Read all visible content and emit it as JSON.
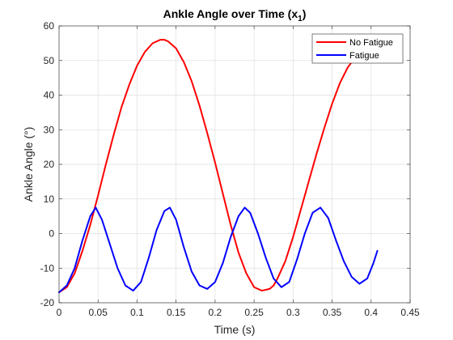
{
  "chart_data": {
    "type": "line",
    "title": "Ankle Angle over Time (x",
    "title_subscript": "1",
    "title_close": ")",
    "xlabel": "Time (s)",
    "ylabel": "Ankle Angle (°)",
    "xlim": [
      0,
      0.45
    ],
    "ylim": [
      -20,
      60
    ],
    "xticks": [
      0,
      0.05,
      0.1,
      0.15,
      0.2,
      0.25,
      0.3,
      0.35,
      0.4,
      0.45
    ],
    "xtick_labels": [
      "0",
      "0.05",
      "0.1",
      "0.15",
      "0.2",
      "0.25",
      "0.3",
      "0.35",
      "0.4",
      "0.45"
    ],
    "yticks": [
      -20,
      -10,
      0,
      10,
      20,
      30,
      40,
      50,
      60
    ],
    "ytick_labels": [
      "-20",
      "-10",
      "0",
      "10",
      "20",
      "30",
      "40",
      "50",
      "60"
    ],
    "grid": true,
    "legend_position": "top-right",
    "series": [
      {
        "name": "No Fatigue",
        "color": "#ff0000",
        "x": [
          0,
          0.01,
          0.02,
          0.03,
          0.04,
          0.05,
          0.06,
          0.07,
          0.08,
          0.09,
          0.1,
          0.11,
          0.12,
          0.13,
          0.135,
          0.14,
          0.15,
          0.16,
          0.17,
          0.18,
          0.19,
          0.2,
          0.21,
          0.22,
          0.23,
          0.24,
          0.25,
          0.26,
          0.27,
          0.275,
          0.28,
          0.29,
          0.3,
          0.31,
          0.32,
          0.33,
          0.34,
          0.35,
          0.36,
          0.37,
          0.38,
          0.39,
          0.4,
          0.408
        ],
        "y": [
          -17,
          -15.5,
          -11.5,
          -5,
          2.5,
          11,
          20,
          28.5,
          36.5,
          43,
          48.5,
          52.5,
          55,
          56,
          56,
          55.5,
          53.5,
          49.5,
          44,
          37,
          29,
          20.5,
          11.5,
          2.5,
          -5.5,
          -11.5,
          -15.5,
          -16.5,
          -16,
          -15,
          -13,
          -8,
          -1,
          7,
          15,
          23,
          30.5,
          37.5,
          43.5,
          48,
          51,
          52.5,
          52.5,
          51.5
        ]
      },
      {
        "name": "Fatigue",
        "color": "#0000ff",
        "x": [
          0,
          0.01,
          0.02,
          0.03,
          0.04,
          0.047,
          0.055,
          0.065,
          0.075,
          0.085,
          0.095,
          0.105,
          0.115,
          0.125,
          0.135,
          0.142,
          0.15,
          0.16,
          0.17,
          0.18,
          0.19,
          0.2,
          0.21,
          0.22,
          0.23,
          0.238,
          0.245,
          0.255,
          0.265,
          0.275,
          0.285,
          0.295,
          0.305,
          0.315,
          0.325,
          0.335,
          0.345,
          0.355,
          0.365,
          0.375,
          0.385,
          0.395,
          0.403,
          0.408
        ],
        "y": [
          -17,
          -15,
          -10,
          -2,
          5,
          7.5,
          4,
          -3,
          -10,
          -15,
          -16.5,
          -14,
          -7,
          1,
          6.5,
          7.5,
          4,
          -4,
          -11,
          -15,
          -16,
          -14,
          -8.5,
          -1,
          5,
          7.5,
          6,
          0,
          -7,
          -13,
          -15.5,
          -14,
          -7.5,
          0,
          6,
          7.5,
          4.5,
          -2,
          -8,
          -12.5,
          -14.5,
          -13,
          -8.5,
          -5
        ]
      }
    ]
  }
}
